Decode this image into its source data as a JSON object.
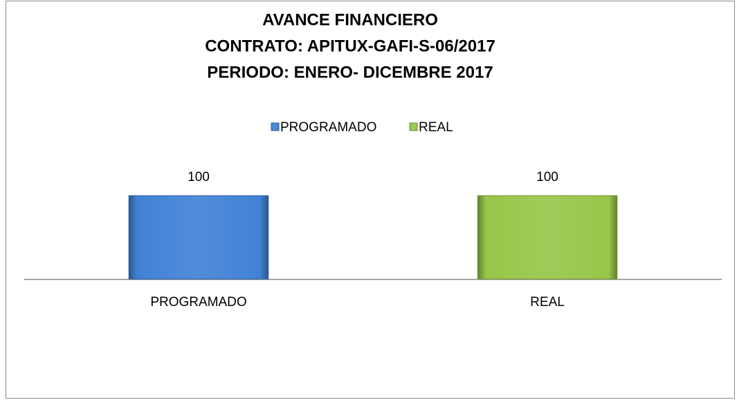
{
  "chart_data": {
    "type": "bar",
    "title": [
      "AVANCE FINANCIERO",
      "CONTRATO: APITUX-GAFI-S-06/2017",
      "PERIODO: ENERO- DICEMBRE 2017"
    ],
    "categories": [
      "PROGRAMADO",
      "REAL"
    ],
    "values": [
      100,
      100
    ],
    "colors": [
      "#4282d6",
      "#97c64a"
    ],
    "ylim": [
      0,
      120
    ],
    "legend": "top"
  }
}
